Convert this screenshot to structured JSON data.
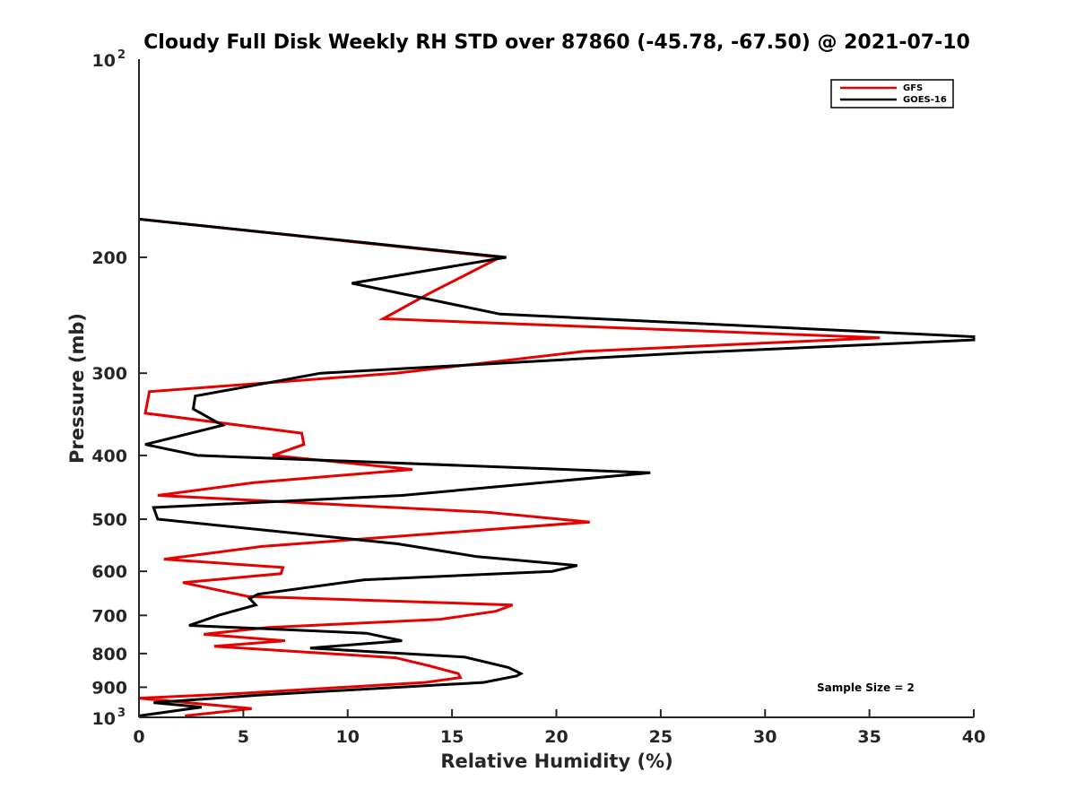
{
  "chart_data": {
    "type": "line",
    "title": "Cloudy Full Disk Weekly RH STD over 87860 (-45.78, -67.50) @ 2021-07-10",
    "xlabel": "Relative Humidity (%)",
    "ylabel": "Pressure (mb)",
    "xlim": [
      0,
      40
    ],
    "ylim": [
      100,
      1000
    ],
    "y_scale": "log",
    "y_reversed": true,
    "x_ticks": [
      0,
      5,
      10,
      15,
      20,
      25,
      30,
      35,
      40
    ],
    "x_tick_labels": [
      "0",
      "5",
      "10",
      "15",
      "20",
      "25",
      "30",
      "35",
      "40"
    ],
    "y_ticks": [
      200,
      300,
      400,
      500,
      600,
      700,
      800,
      900
    ],
    "y_tick_labels": [
      "200",
      "300",
      "400",
      "500",
      "600",
      "700",
      "800",
      "900"
    ],
    "y_extreme_ticks": [
      {
        "value": 100,
        "base": "10",
        "exp": "2"
      },
      {
        "value": 1000,
        "base": "10",
        "exp": "3"
      }
    ],
    "legend_position": "top-right",
    "annotation": "Sample Size = 2",
    "series": [
      {
        "name": "GFS",
        "color": "#e60000",
        "points": [
          [
            0,
            175
          ],
          [
            17.3,
            200
          ],
          [
            13.9,
            227
          ],
          [
            11.7,
            248
          ],
          [
            35.5,
            265
          ],
          [
            21.3,
            278
          ],
          [
            12.3,
            300
          ],
          [
            0.5,
            320
          ],
          [
            0.3,
            345
          ],
          [
            7.8,
            370
          ],
          [
            7.9,
            385
          ],
          [
            6.4,
            400
          ],
          [
            13.1,
            420
          ],
          [
            5.5,
            440
          ],
          [
            0.9,
            460
          ],
          [
            16.7,
            488
          ],
          [
            21.6,
            505
          ],
          [
            5.9,
            550
          ],
          [
            1.2,
            575
          ],
          [
            6.9,
            592
          ],
          [
            6.8,
            605
          ],
          [
            2.1,
            624
          ],
          [
            5.2,
            655
          ],
          [
            17.9,
            675
          ],
          [
            17.1,
            690
          ],
          [
            14.4,
            710
          ],
          [
            6.2,
            730
          ],
          [
            3.1,
            748
          ],
          [
            7.0,
            765
          ],
          [
            3.6,
            780
          ],
          [
            12.3,
            812
          ],
          [
            13.9,
            835
          ],
          [
            15.3,
            858
          ],
          [
            15.4,
            870
          ],
          [
            13.7,
            885
          ],
          [
            4.8,
            920
          ],
          [
            0,
            935
          ],
          [
            5.4,
            970
          ],
          [
            2.2,
            995
          ]
        ]
      },
      {
        "name": "GOES-16",
        "color": "#000000",
        "points": [
          [
            0,
            175
          ],
          [
            17.6,
            200
          ],
          [
            10.2,
            219
          ],
          [
            17.3,
            244
          ],
          [
            40,
            264
          ],
          [
            40,
            267
          ],
          [
            25.7,
            280
          ],
          [
            8.7,
            300
          ],
          [
            2.7,
            325
          ],
          [
            2.6,
            340
          ],
          [
            4.0,
            360
          ],
          [
            0.3,
            385
          ],
          [
            2.8,
            400
          ],
          [
            24.5,
            425
          ],
          [
            12.6,
            460
          ],
          [
            0.7,
            480
          ],
          [
            0.9,
            500
          ],
          [
            12.4,
            545
          ],
          [
            16.2,
            570
          ],
          [
            21.0,
            588
          ],
          [
            19.8,
            600
          ],
          [
            10.8,
            618
          ],
          [
            5.7,
            650
          ],
          [
            5.3,
            660
          ],
          [
            5.6,
            675
          ],
          [
            3.8,
            700
          ],
          [
            2.4,
            725
          ],
          [
            10.9,
            745
          ],
          [
            12.6,
            765
          ],
          [
            8.2,
            785
          ],
          [
            15.6,
            810
          ],
          [
            17.7,
            840
          ],
          [
            18.3,
            858
          ],
          [
            18.1,
            865
          ],
          [
            16.5,
            885
          ],
          [
            5.8,
            925
          ],
          [
            0.7,
            950
          ],
          [
            3.0,
            965
          ],
          [
            0,
            995
          ]
        ]
      }
    ]
  }
}
